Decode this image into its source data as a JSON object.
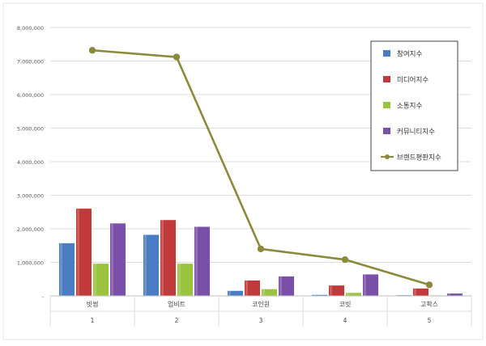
{
  "chart_data": {
    "type": "bar+line",
    "categories": [
      "빗썸",
      "업비트",
      "코인원",
      "코빗",
      "고팍스"
    ],
    "category_numbers": [
      "1",
      "2",
      "3",
      "4",
      "5"
    ],
    "ylim": [
      0,
      8000000
    ],
    "yticks": [
      "-",
      "1,000,000",
      "2,000,000",
      "3,000,000",
      "4,000,000",
      "5,000,000",
      "6,000,000",
      "7,000,000",
      "8,000,000"
    ],
    "grid": true,
    "legend_position": "top-right",
    "series": [
      {
        "name": "참여지수",
        "type": "bar",
        "color": "#4a7cc4",
        "values": [
          1570000,
          1820000,
          150000,
          30000,
          20000
        ]
      },
      {
        "name": "미디어지수",
        "type": "bar",
        "color": "#c0393b",
        "values": [
          2600000,
          2260000,
          460000,
          310000,
          220000
        ]
      },
      {
        "name": "소통지수",
        "type": "bar",
        "color": "#9ac43e",
        "values": [
          960000,
          960000,
          200000,
          90000,
          15000
        ]
      },
      {
        "name": "커뮤니티지수",
        "type": "bar",
        "color": "#7a4fa8",
        "values": [
          2160000,
          2060000,
          580000,
          640000,
          70000
        ]
      },
      {
        "name": "브랜드평판지수",
        "type": "line",
        "color": "#8b8a3c",
        "values": [
          7320000,
          7120000,
          1400000,
          1080000,
          330000
        ]
      }
    ]
  }
}
